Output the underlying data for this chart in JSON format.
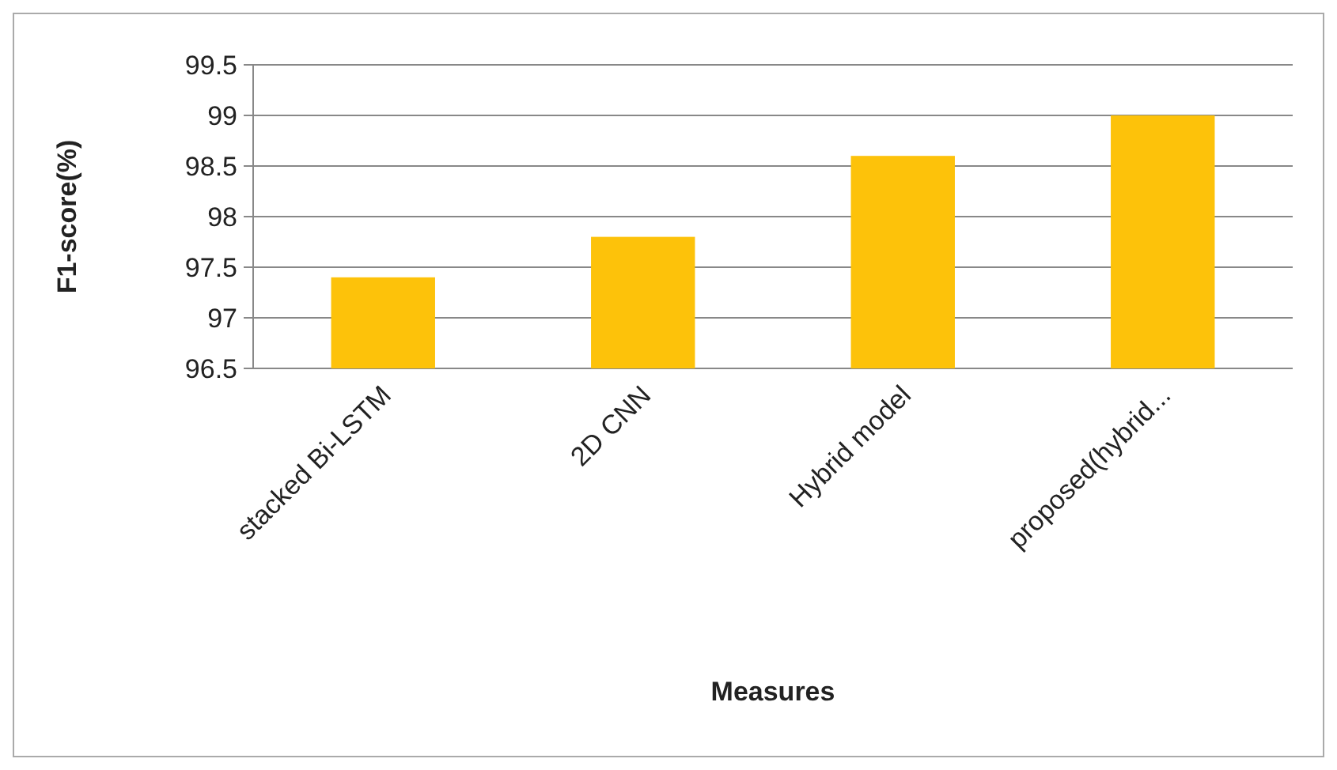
{
  "chart_data": {
    "type": "bar",
    "xlabel": "Measures",
    "ylabel": "F1-score(%)",
    "categories": [
      "stacked Bi-LSTM",
      "2D CNN",
      "Hybrid model",
      "proposed(hybrid..."
    ],
    "values": [
      97.4,
      97.8,
      98.6,
      99.0
    ],
    "color": "#fdc20a",
    "ylim": [
      96.5,
      99.5
    ],
    "yticks": [
      96.5,
      97,
      97.5,
      98,
      98.5,
      99,
      99.5
    ],
    "grid": "y"
  }
}
